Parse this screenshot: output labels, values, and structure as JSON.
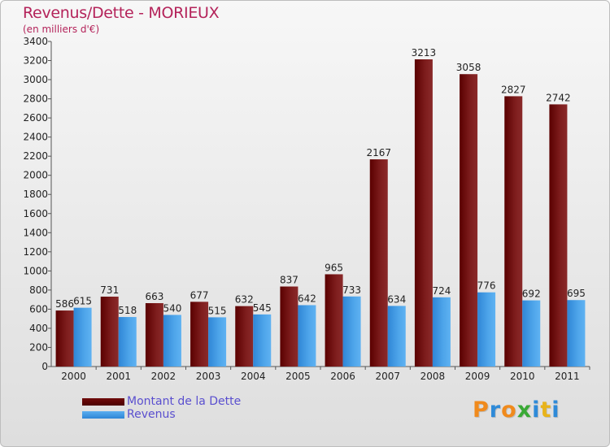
{
  "title": "Revenus/Dette - MORIEUX",
  "subtitle": "(en milliers d'€)",
  "legend": [
    {
      "label": "Montant de la Dette"
    },
    {
      "label": "Revenus"
    }
  ],
  "logo": {
    "text": "Proxiti"
  },
  "colors": {
    "debt_top": "#8a2a2a",
    "debt_bottom": "#5a0000",
    "revenue_top": "#5fb2f2",
    "revenue_bottom": "#2f86d6",
    "title": "#b4235a",
    "legend_text": "#5a4fcf"
  },
  "chart_data": {
    "type": "bar",
    "title": "Revenus/Dette - MORIEUX",
    "ylabel": "(en milliers d'€)",
    "xlabel": "",
    "categories": [
      "2000",
      "2001",
      "2002",
      "2003",
      "2004",
      "2005",
      "2006",
      "2007",
      "2008",
      "2009",
      "2010",
      "2011"
    ],
    "series": [
      {
        "name": "Montant de la Dette",
        "values": [
          586,
          731,
          663,
          677,
          632,
          837,
          965,
          2167,
          3213,
          3058,
          2827,
          2742
        ]
      },
      {
        "name": "Revenus",
        "values": [
          615,
          518,
          540,
          515,
          545,
          642,
          733,
          634,
          724,
          776,
          692,
          695
        ]
      }
    ],
    "ylim": [
      0,
      3400
    ],
    "yticks": [
      0,
      200,
      400,
      600,
      800,
      1000,
      1200,
      1400,
      1600,
      1800,
      2000,
      2200,
      2400,
      2600,
      2800,
      3000,
      3200,
      3400
    ],
    "grid": false,
    "legend_position": "bottom-left"
  }
}
